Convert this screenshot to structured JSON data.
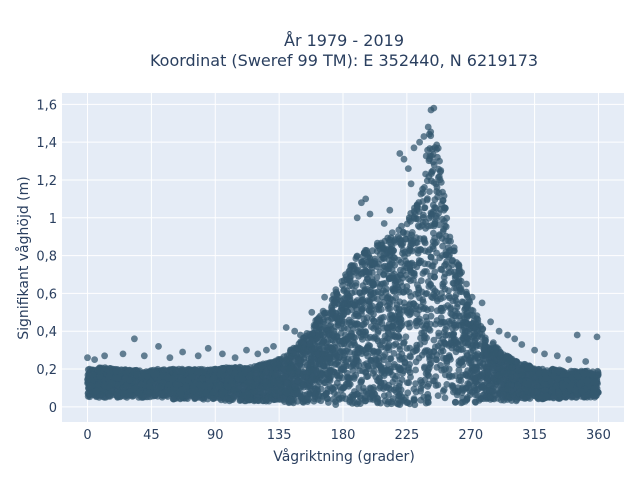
{
  "chart_data": {
    "type": "scatter",
    "title_line1": "År 1979 - 2019",
    "title_line2": "Koordinat (Sweref 99 TM): E 352440, N 6219173",
    "xlabel": "Vågriktning (grader)",
    "ylabel": "Signifikant våghöjd (m)",
    "xlim": [
      -18,
      378
    ],
    "ylim": [
      -0.08,
      1.66
    ],
    "x_ticks": [
      0,
      45,
      90,
      135,
      180,
      225,
      270,
      315,
      360
    ],
    "x_tick_labels": [
      "0",
      "45",
      "90",
      "135",
      "180",
      "225",
      "270",
      "315",
      "360"
    ],
    "y_ticks": [
      0,
      0.2,
      0.4,
      0.6,
      0.8,
      1.0,
      1.2,
      1.4,
      1.6
    ],
    "y_tick_labels": [
      "0",
      "0,2",
      "0,4",
      "0,6",
      "0,8",
      "1",
      "1,2",
      "1,4",
      "1,6"
    ],
    "grid": true,
    "colors": {
      "marker": "#34586f",
      "plot_bg": "#e5ecf6",
      "grid": "#ffffff",
      "text": "#2a3f5f"
    },
    "envelope": {
      "x": [
        0,
        10,
        20,
        30,
        40,
        50,
        60,
        70,
        80,
        90,
        100,
        110,
        120,
        130,
        140,
        150,
        160,
        170,
        180,
        190,
        200,
        210,
        220,
        230,
        235,
        240,
        243,
        246,
        250,
        255,
        260,
        270,
        280,
        290,
        300,
        310,
        320,
        330,
        340,
        350,
        360
      ],
      "y_max": [
        0.2,
        0.21,
        0.2,
        0.2,
        0.19,
        0.2,
        0.2,
        0.2,
        0.2,
        0.2,
        0.21,
        0.21,
        0.22,
        0.24,
        0.28,
        0.35,
        0.45,
        0.55,
        0.68,
        0.8,
        0.85,
        0.9,
        0.95,
        1.05,
        1.2,
        1.4,
        1.55,
        1.45,
        1.2,
        0.95,
        0.8,
        0.55,
        0.4,
        0.3,
        0.25,
        0.22,
        0.2,
        0.2,
        0.19,
        0.19,
        0.19
      ],
      "y_min": [
        0.05,
        0.05,
        0.05,
        0.05,
        0.05,
        0.05,
        0.04,
        0.04,
        0.04,
        0.04,
        0.03,
        0.03,
        0.03,
        0.03,
        0.02,
        0.02,
        0.01,
        0.01,
        0.01,
        0.01,
        0.01,
        0.01,
        0.01,
        0.01,
        0.01,
        0.01,
        0.02,
        0.02,
        0.02,
        0.02,
        0.02,
        0.02,
        0.03,
        0.03,
        0.03,
        0.04,
        0.04,
        0.04,
        0.05,
        0.05,
        0.05
      ]
    },
    "outliers": [
      {
        "x": 0,
        "y": 0.26
      },
      {
        "x": 5,
        "y": 0.25
      },
      {
        "x": 12,
        "y": 0.27
      },
      {
        "x": 25,
        "y": 0.28
      },
      {
        "x": 33,
        "y": 0.36
      },
      {
        "x": 40,
        "y": 0.27
      },
      {
        "x": 50,
        "y": 0.32
      },
      {
        "x": 58,
        "y": 0.26
      },
      {
        "x": 67,
        "y": 0.29
      },
      {
        "x": 78,
        "y": 0.27
      },
      {
        "x": 85,
        "y": 0.31
      },
      {
        "x": 95,
        "y": 0.28
      },
      {
        "x": 104,
        "y": 0.26
      },
      {
        "x": 112,
        "y": 0.3
      },
      {
        "x": 120,
        "y": 0.28
      },
      {
        "x": 126,
        "y": 0.3
      },
      {
        "x": 131,
        "y": 0.32
      },
      {
        "x": 140,
        "y": 0.42
      },
      {
        "x": 146,
        "y": 0.4
      },
      {
        "x": 150,
        "y": 0.38
      },
      {
        "x": 158,
        "y": 0.5
      },
      {
        "x": 167,
        "y": 0.58
      },
      {
        "x": 175,
        "y": 0.62
      },
      {
        "x": 190,
        "y": 1.0
      },
      {
        "x": 193,
        "y": 1.08
      },
      {
        "x": 196,
        "y": 1.1
      },
      {
        "x": 199,
        "y": 1.02
      },
      {
        "x": 209,
        "y": 0.97
      },
      {
        "x": 213,
        "y": 1.04
      },
      {
        "x": 220,
        "y": 1.34
      },
      {
        "x": 223,
        "y": 1.31
      },
      {
        "x": 226,
        "y": 1.26
      },
      {
        "x": 228,
        "y": 1.18
      },
      {
        "x": 230,
        "y": 1.37
      },
      {
        "x": 234,
        "y": 1.4
      },
      {
        "x": 237,
        "y": 1.43
      },
      {
        "x": 240,
        "y": 1.48
      },
      {
        "x": 242,
        "y": 1.57
      },
      {
        "x": 244,
        "y": 1.58
      },
      {
        "x": 248,
        "y": 1.3
      },
      {
        "x": 252,
        "y": 1.05
      },
      {
        "x": 262,
        "y": 0.72
      },
      {
        "x": 267,
        "y": 0.65
      },
      {
        "x": 271,
        "y": 0.58
      },
      {
        "x": 278,
        "y": 0.55
      },
      {
        "x": 284,
        "y": 0.45
      },
      {
        "x": 290,
        "y": 0.4
      },
      {
        "x": 296,
        "y": 0.38
      },
      {
        "x": 301,
        "y": 0.36
      },
      {
        "x": 306,
        "y": 0.33
      },
      {
        "x": 315,
        "y": 0.3
      },
      {
        "x": 322,
        "y": 0.28
      },
      {
        "x": 331,
        "y": 0.27
      },
      {
        "x": 339,
        "y": 0.25
      },
      {
        "x": 345,
        "y": 0.38
      },
      {
        "x": 351,
        "y": 0.24
      },
      {
        "x": 359,
        "y": 0.37
      }
    ]
  }
}
